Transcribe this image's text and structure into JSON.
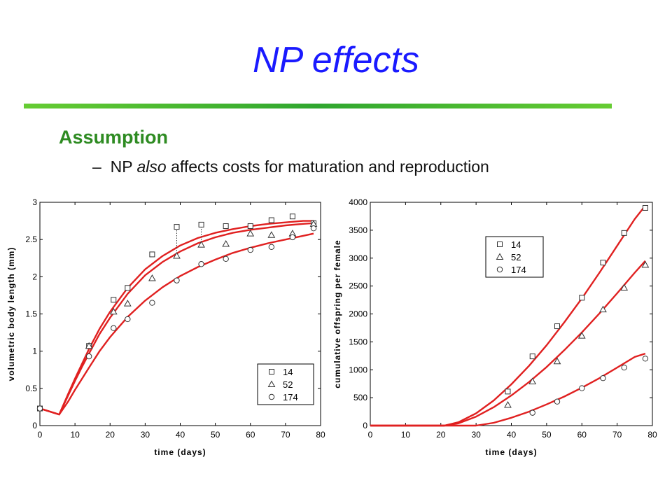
{
  "slide": {
    "title": "NP effects",
    "heading": "Assumption",
    "bullet_dash": "–",
    "bullet_prefix": "NP ",
    "bullet_italic": "also",
    "bullet_suffix": " affects costs for maturation and reproduction"
  },
  "chart_data": [
    {
      "type": "scatter",
      "title": "",
      "xlabel": "time (days)",
      "ylabel": "volumetric body length (mm)",
      "xlim": [
        0,
        80
      ],
      "ylim": [
        0,
        3
      ],
      "xticks": [
        0,
        10,
        20,
        30,
        40,
        50,
        60,
        70,
        80
      ],
      "yticks": [
        0,
        0.5,
        1,
        1.5,
        2,
        2.5,
        3
      ],
      "legend_position": "bottom-right",
      "grid": false,
      "series": [
        {
          "name": "14",
          "marker": "square",
          "x": [
            0,
            14,
            21,
            25,
            32,
            39,
            46,
            53,
            60,
            66,
            72,
            78
          ],
          "y": [
            0.23,
            1.07,
            1.69,
            1.85,
            2.3,
            2.67,
            2.7,
            2.68,
            2.68,
            2.76,
            2.81,
            2.72
          ]
        },
        {
          "name": "52",
          "marker": "triangle",
          "x": [
            14,
            21,
            25,
            32,
            39,
            46,
            53,
            60,
            66,
            72,
            78
          ],
          "y": [
            1.07,
            1.53,
            1.64,
            1.98,
            2.28,
            2.43,
            2.44,
            2.58,
            2.56,
            2.58,
            2.71
          ]
        },
        {
          "name": "174",
          "marker": "circle",
          "x": [
            0,
            14,
            21,
            25,
            32,
            39,
            46,
            53,
            60,
            66,
            72,
            78
          ],
          "y": [
            0.23,
            0.93,
            1.31,
            1.43,
            1.65,
            1.95,
            2.17,
            2.24,
            2.36,
            2.4,
            2.53,
            2.65
          ]
        }
      ],
      "fit_lines": [
        {
          "x": [
            0,
            5.5,
            8,
            10,
            12,
            14,
            17,
            20,
            25,
            30,
            35,
            40,
            45,
            50,
            55,
            60,
            65,
            70,
            75,
            78
          ],
          "y": [
            0.23,
            0.15,
            0.42,
            0.63,
            0.83,
            1.03,
            1.3,
            1.53,
            1.85,
            2.1,
            2.28,
            2.42,
            2.52,
            2.59,
            2.64,
            2.68,
            2.71,
            2.73,
            2.75,
            2.75
          ]
        },
        {
          "x": [
            0,
            5.5,
            8,
            10,
            12,
            14,
            17,
            20,
            25,
            30,
            35,
            40,
            45,
            50,
            55,
            60,
            65,
            70,
            75,
            78
          ],
          "y": [
            0.23,
            0.15,
            0.4,
            0.6,
            0.79,
            0.97,
            1.23,
            1.45,
            1.77,
            2.02,
            2.2,
            2.34,
            2.45,
            2.53,
            2.59,
            2.63,
            2.66,
            2.69,
            2.71,
            2.72
          ]
        },
        {
          "x": [
            0,
            5.5,
            8,
            10,
            12,
            14,
            17,
            20,
            25,
            30,
            35,
            40,
            45,
            50,
            55,
            60,
            65,
            70,
            75,
            78
          ],
          "y": [
            0.23,
            0.15,
            0.32,
            0.48,
            0.63,
            0.78,
            1.0,
            1.19,
            1.46,
            1.68,
            1.86,
            2.01,
            2.13,
            2.23,
            2.32,
            2.39,
            2.45,
            2.5,
            2.55,
            2.58
          ]
        }
      ],
      "dotted_links": [
        {
          "x": 39,
          "y1": 2.28,
          "y2": 2.67
        },
        {
          "x": 46,
          "y1": 2.43,
          "y2": 2.7
        }
      ]
    },
    {
      "type": "scatter",
      "title": "",
      "xlabel": "time (days)",
      "ylabel": "cumulative offspring per female",
      "xlim": [
        0,
        80
      ],
      "ylim": [
        0,
        4000
      ],
      "xticks": [
        0,
        10,
        20,
        30,
        40,
        50,
        60,
        70,
        80
      ],
      "yticks": [
        0,
        500,
        1000,
        1500,
        2000,
        2500,
        3000,
        3500,
        4000
      ],
      "legend_position": "top-left",
      "grid": false,
      "series": [
        {
          "name": "14",
          "marker": "square",
          "x": [
            39,
            46,
            53,
            60,
            66,
            72,
            78
          ],
          "y": [
            610,
            1240,
            1780,
            2290,
            2920,
            3450,
            3900
          ]
        },
        {
          "name": "52",
          "marker": "triangle",
          "x": [
            39,
            46,
            53,
            60,
            66,
            72,
            78
          ],
          "y": [
            370,
            790,
            1150,
            1610,
            2080,
            2470,
            2880
          ]
        },
        {
          "name": "174",
          "marker": "circle",
          "x": [
            46,
            53,
            60,
            66,
            72,
            78
          ],
          "y": [
            230,
            430,
            670,
            850,
            1040,
            1200
          ]
        }
      ],
      "fit_lines": [
        {
          "x": [
            0,
            21,
            25,
            30,
            35,
            40,
            45,
            50,
            55,
            60,
            65,
            70,
            75,
            78
          ],
          "y": [
            0,
            0,
            60,
            220,
            450,
            740,
            1070,
            1440,
            1850,
            2280,
            2740,
            3220,
            3700,
            3940
          ]
        },
        {
          "x": [
            0,
            21,
            25,
            30,
            35,
            40,
            45,
            50,
            55,
            60,
            65,
            70,
            75,
            78
          ],
          "y": [
            0,
            0,
            40,
            160,
            330,
            540,
            780,
            1050,
            1350,
            1670,
            2010,
            2370,
            2740,
            2950
          ]
        },
        {
          "x": [
            0,
            30,
            35,
            40,
            45,
            50,
            55,
            60,
            65,
            70,
            75,
            78
          ],
          "y": [
            0,
            0,
            50,
            140,
            250,
            380,
            520,
            680,
            850,
            1040,
            1230,
            1290
          ]
        }
      ]
    }
  ]
}
